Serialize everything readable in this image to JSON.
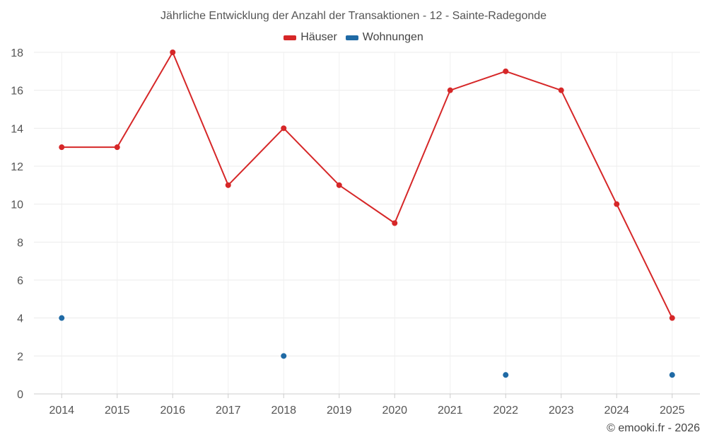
{
  "chart_data": {
    "type": "line",
    "title": "Jährliche Entwicklung der Anzahl der Transaktionen - 12 - Sainte-Radegonde",
    "categories": [
      "2014",
      "2015",
      "2016",
      "2017",
      "2018",
      "2019",
      "2020",
      "2021",
      "2022",
      "2023",
      "2024",
      "2025"
    ],
    "series": [
      {
        "name": "Häuser",
        "color": "#d62728",
        "values": [
          13,
          13,
          18,
          11,
          14,
          11,
          9,
          16,
          17,
          16,
          10,
          4
        ]
      },
      {
        "name": "Wohnungen",
        "color": "#1f6aa5",
        "values": [
          4,
          null,
          null,
          null,
          2,
          null,
          null,
          null,
          1,
          null,
          null,
          1
        ]
      }
    ],
    "ylim": [
      0,
      18
    ],
    "yticks": [
      0,
      2,
      4,
      6,
      8,
      10,
      12,
      14,
      16,
      18
    ],
    "grid": true,
    "legend": "top-center"
  },
  "footer": {
    "copyright": "© emooki.fr - 2026"
  }
}
